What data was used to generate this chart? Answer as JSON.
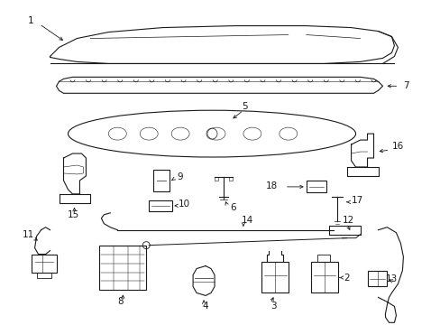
{
  "bg_color": "#ffffff",
  "line_color": "#1a1a1a",
  "figsize": [
    4.89,
    3.6
  ],
  "dpi": 100,
  "label_fs": 7.5
}
